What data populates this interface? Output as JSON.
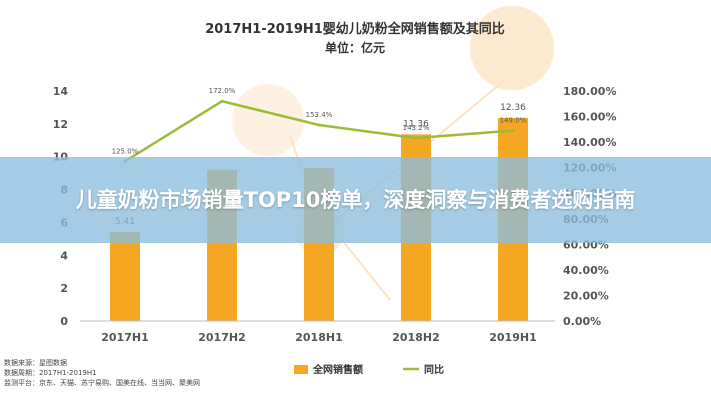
{
  "overlay": {
    "headline": "儿童奶粉市场销量TOP10榜单，深度洞察与消费者选购指南"
  },
  "source": {
    "lines": [
      "数据来源：星图数据",
      "数据周期：2017H1-2019H1",
      "监测平台：京东、天猫、苏宁易购、国美在线、当当网、聚美网"
    ]
  },
  "colors": {
    "bar": "#f5a623",
    "line": "#9bbb3a",
    "title": "#333333"
  },
  "chart_data": {
    "type": "bar",
    "title": "2017H1-2019H1婴幼儿奶粉全网销售额及其同比",
    "subtitle": "单位：亿元",
    "categories": [
      "2017H1",
      "2017H2",
      "2018H1",
      "2018H2",
      "2019H1"
    ],
    "series": [
      {
        "name": "全网销售额",
        "type": "bar",
        "axis": "left",
        "values": [
          5.41,
          9.2,
          9.3,
          11.36,
          12.36
        ]
      },
      {
        "name": "同比",
        "type": "line",
        "axis": "right",
        "values": [
          125.0,
          172.0,
          153.4,
          143.2,
          149.0
        ]
      }
    ],
    "bar_labels": [
      "5.41",
      "",
      "",
      "11.36",
      "12.36"
    ],
    "line_labels": [
      "125.0%",
      "172.0%",
      "153.4%",
      "143.2%",
      "149.0%"
    ],
    "y_left": {
      "ticks": [
        0,
        2,
        4,
        6,
        8,
        10,
        12,
        14
      ],
      "ylim": [
        0,
        14
      ]
    },
    "y_right": {
      "ticks": [
        "0.00%",
        "20.00%",
        "40.00%",
        "60.00%",
        "80.00%",
        "100.00%",
        "120.00%",
        "140.00%",
        "160.00%",
        "180.00%"
      ],
      "ylim": [
        0,
        180
      ]
    },
    "legend": {
      "position": "bottom"
    },
    "grid": false
  }
}
